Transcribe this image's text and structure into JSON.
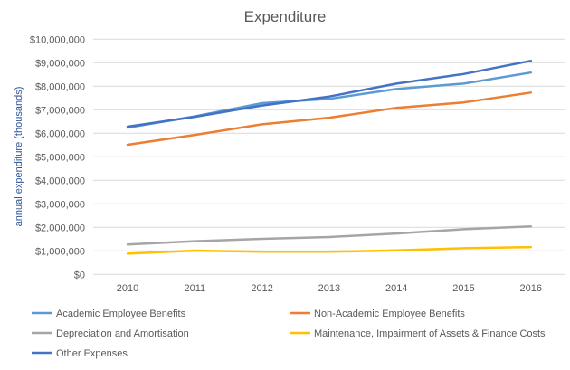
{
  "chart_data": {
    "type": "line",
    "title": "Expenditure",
    "xlabel": "",
    "ylabel": "annual expenditure (thousands)",
    "x": [
      "2010",
      "2011",
      "2012",
      "2013",
      "2014",
      "2015",
      "2016"
    ],
    "ylim": [
      0,
      10000000
    ],
    "yticks": [
      0,
      1000000,
      2000000,
      3000000,
      4000000,
      5000000,
      6000000,
      7000000,
      8000000,
      9000000,
      10000000
    ],
    "ytick_labels": [
      "$0",
      "$1,000,000",
      "$2,000,000",
      "$3,000,000",
      "$4,000,000",
      "$5,000,000",
      "$6,000,000",
      "$7,000,000",
      "$8,000,000",
      "$9,000,000",
      "$10,000,000"
    ],
    "grid": true,
    "legend_placement": "bottom",
    "series": [
      {
        "name": "Academic Employee Benefits",
        "color": "#5B9BD5",
        "values": [
          6240000,
          6720000,
          7280000,
          7460000,
          7880000,
          8110000,
          8580000
        ]
      },
      {
        "name": "Non-Academic Employee Benefits",
        "color": "#ED7D31",
        "values": [
          5510000,
          5930000,
          6380000,
          6660000,
          7080000,
          7310000,
          7730000
        ]
      },
      {
        "name": "Depreciation and Amortisation",
        "color": "#A5A5A5",
        "values": [
          1270000,
          1410000,
          1510000,
          1590000,
          1740000,
          1920000,
          2040000
        ]
      },
      {
        "name": "Maintenance, Impairment of Assets & Finance Costs",
        "color": "#FFC000",
        "values": [
          880000,
          1010000,
          960000,
          960000,
          1020000,
          1110000,
          1160000
        ]
      },
      {
        "name": "Other Expenses",
        "color": "#4472C4",
        "values": [
          6280000,
          6700000,
          7180000,
          7560000,
          8110000,
          8520000,
          9080000
        ]
      }
    ]
  }
}
